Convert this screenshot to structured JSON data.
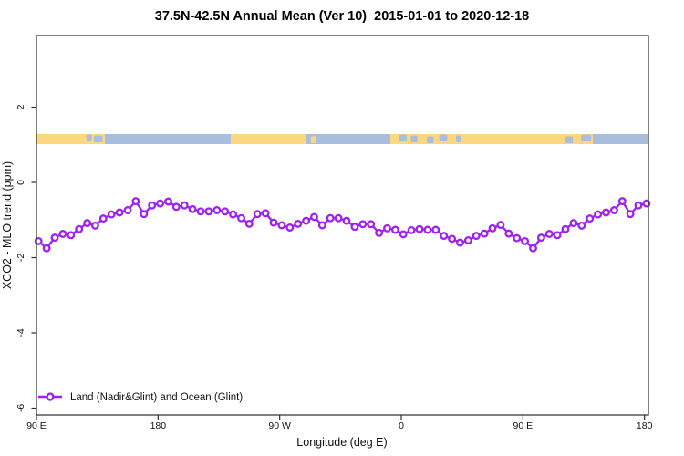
{
  "chart_data": {
    "type": "line",
    "title": "37.5N-42.5N Annual Mean (Ver 10)  2015-01-01 to 2020-12-18",
    "xlabel": "Longitude (deg E)",
    "ylabel": "XCO2 - MLO trend (ppm)",
    "x_axis": {
      "note": "longitude axis spans 450 deg starting at 90E and wraps past 360",
      "ticks_deg": [
        90,
        180,
        270,
        360,
        450,
        540
      ],
      "tick_labels": [
        "90 E",
        "180",
        "90 W",
        "0",
        "90 E",
        "180"
      ],
      "range_deg": [
        90,
        543
      ]
    },
    "y_axis": {
      "ticks": [
        2,
        0,
        -2,
        -4,
        -6
      ],
      "range": [
        -6.2,
        3.9
      ],
      "grid": false
    },
    "legend_position": "bottom-left",
    "series": [
      {
        "name": "Land (Nadir&Glint) and Ocean (Glint)",
        "color": "#A020F0",
        "marker": "open-circle",
        "x_start_deg": 91.5,
        "x_step_deg": 6,
        "values": [
          -1.56,
          -1.75,
          -1.47,
          -1.37,
          -1.4,
          -1.24,
          -1.08,
          -1.15,
          -0.96,
          -0.85,
          -0.8,
          -0.74,
          -0.5,
          -0.84,
          -0.61,
          -0.56,
          -0.51,
          -0.65,
          -0.61,
          -0.71,
          -0.77,
          -0.77,
          -0.74,
          -0.77,
          -0.85,
          -0.95,
          -1.1,
          -0.84,
          -0.82,
          -1.07,
          -1.14,
          -1.2,
          -1.1,
          -1.02,
          -0.92,
          -1.14,
          -0.95,
          -0.95,
          -1.02,
          -1.18,
          -1.11,
          -1.11,
          -1.34,
          -1.22,
          -1.26,
          -1.38,
          -1.27,
          -1.24,
          -1.26,
          -1.26,
          -1.42,
          -1.5,
          -1.6,
          -1.54,
          -1.42,
          -1.36,
          -1.22,
          -1.13,
          -1.36,
          -1.48,
          -1.56,
          -1.75,
          -1.47,
          -1.37,
          -1.4,
          -1.24,
          -1.08,
          -1.15,
          -0.96,
          -0.85,
          -0.8,
          -0.74,
          -0.5,
          -0.84,
          -0.61,
          -0.56
        ]
      }
    ],
    "surface_band": {
      "description": "land/ocean indicator strip",
      "y_value_range": [
        1.0,
        1.27
      ],
      "land_color": "#FBD87F",
      "ocean_color": "#A9BEDC",
      "segments": [
        {
          "from": 90,
          "to": 140.6,
          "type": "land"
        },
        {
          "from": 140.6,
          "to": 233.8,
          "type": "ocean"
        },
        {
          "from": 233.8,
          "to": 289.8,
          "type": "land"
        },
        {
          "from": 289.8,
          "to": 351.9,
          "type": "ocean"
        },
        {
          "from": 351.9,
          "to": 501.7,
          "type": "land"
        },
        {
          "from": 501.7,
          "to": 543,
          "type": "ocean"
        }
      ],
      "specks": [
        {
          "from": 127,
          "to": 131,
          "type": "ocean"
        },
        {
          "from": 132.5,
          "to": 139,
          "type": "ocean"
        },
        {
          "from": 293,
          "to": 297,
          "type": "land"
        },
        {
          "from": 358,
          "to": 364,
          "type": "ocean"
        },
        {
          "from": 367,
          "to": 372,
          "type": "ocean"
        },
        {
          "from": 379,
          "to": 384,
          "type": "ocean"
        },
        {
          "from": 388,
          "to": 394,
          "type": "ocean"
        },
        {
          "from": 400.5,
          "to": 404.5,
          "type": "ocean"
        },
        {
          "from": 481.5,
          "to": 487,
          "type": "ocean"
        },
        {
          "from": 493,
          "to": 500.5,
          "type": "ocean"
        }
      ]
    }
  }
}
